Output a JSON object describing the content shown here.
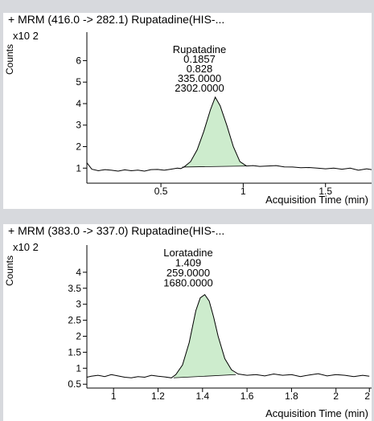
{
  "chart_data": [
    {
      "type": "line",
      "title": "+ MRM (416.0 -> 282.1) Rupatadine(HIS-...",
      "ylabel": "Counts",
      "y_multiplier": "x10 2",
      "xlabel": "Acquisition Time (min)",
      "xlim": [
        0.05,
        1.78
      ],
      "ylim": [
        0.3,
        7.1
      ],
      "x_ticks": [
        0.5,
        1,
        1.5
      ],
      "x_tick_labels": [
        "0.5",
        "1",
        "1.5"
      ],
      "y_ticks": [
        1,
        2,
        3,
        4,
        5,
        6
      ],
      "y_tick_labels": [
        "1",
        "2",
        "3",
        "4",
        "5",
        "6"
      ],
      "peak": {
        "annotation": [
          "Rupatadine",
          "0.1857",
          "0.828",
          "335.0000",
          "2302.0000"
        ],
        "start": [
          0.63,
          1.05
        ],
        "apex": [
          0.83,
          4.3
        ],
        "end": [
          1.02,
          1.1
        ],
        "fill_color": "#cdeccd"
      },
      "series": [
        {
          "line_color": "#000000",
          "x": [
            0.05,
            0.08,
            0.12,
            0.16,
            0.2,
            0.24,
            0.28,
            0.32,
            0.36,
            0.4,
            0.44,
            0.48,
            0.52,
            0.56,
            0.6,
            0.62,
            0.64,
            0.68,
            0.72,
            0.76,
            0.8,
            0.83,
            0.86,
            0.9,
            0.94,
            0.98,
            1.02,
            1.06,
            1.1,
            1.15,
            1.2,
            1.25,
            1.3,
            1.35,
            1.4,
            1.45,
            1.5,
            1.55,
            1.6,
            1.65,
            1.7,
            1.75,
            1.78
          ],
          "y": [
            1.25,
            0.95,
            0.88,
            0.93,
            0.9,
            0.86,
            0.92,
            0.88,
            0.91,
            0.86,
            0.93,
            0.94,
            0.9,
            0.95,
            1.0,
            0.98,
            1.05,
            1.3,
            1.85,
            2.7,
            3.7,
            4.3,
            3.9,
            3.0,
            2.0,
            1.3,
            1.1,
            1.12,
            1.08,
            1.1,
            1.12,
            1.06,
            1.05,
            1.02,
            1.03,
            1.0,
            0.97,
            1.0,
            0.95,
            1.0,
            0.9,
            0.97,
            0.93
          ]
        }
      ]
    },
    {
      "type": "line",
      "title": "+ MRM (383.0 -> 337.0) Rupatadine(HIS-...",
      "ylabel": "Counts",
      "y_multiplier": "x10 2",
      "xlabel": "Acquisition Time (min)",
      "xlim": [
        0.88,
        2.16
      ],
      "ylim": [
        0.38,
        4.7
      ],
      "x_ticks": [
        1,
        1.2,
        1.4,
        1.6,
        1.8,
        2,
        2.15
      ],
      "x_tick_labels": [
        "1",
        "1.2",
        "1.4",
        "1.6",
        "1.8",
        "2",
        "2"
      ],
      "y_ticks": [
        0.5,
        1,
        1.5,
        2,
        2.5,
        3,
        3.5,
        4
      ],
      "y_tick_labels": [
        "0.5",
        "1",
        "1.5",
        "2",
        "2.5",
        "3",
        "3.5",
        "4"
      ],
      "peak": {
        "annotation": [
          "Loratadine",
          "1.409",
          "259.0000",
          "1680.0000"
        ],
        "start": [
          1.27,
          0.7
        ],
        "apex": [
          1.41,
          3.3
        ],
        "end": [
          1.55,
          0.8
        ],
        "fill_color": "#cdeccd"
      },
      "series": [
        {
          "line_color": "#000000",
          "x": [
            0.88,
            0.9,
            0.93,
            0.96,
            0.99,
            1.02,
            1.05,
            1.08,
            1.11,
            1.14,
            1.17,
            1.2,
            1.23,
            1.26,
            1.28,
            1.31,
            1.34,
            1.37,
            1.39,
            1.41,
            1.43,
            1.45,
            1.47,
            1.5,
            1.53,
            1.56,
            1.6,
            1.64,
            1.68,
            1.72,
            1.76,
            1.8,
            1.84,
            1.88,
            1.92,
            1.96,
            2.0,
            2.04,
            2.08,
            2.12,
            2.15
          ],
          "y": [
            0.72,
            0.75,
            0.78,
            0.74,
            0.8,
            0.76,
            0.72,
            0.7,
            0.74,
            0.72,
            0.78,
            0.75,
            0.73,
            0.7,
            0.8,
            1.1,
            1.8,
            2.8,
            3.2,
            3.3,
            3.1,
            2.6,
            2.0,
            1.3,
            0.95,
            0.82,
            0.78,
            0.8,
            0.76,
            0.82,
            0.78,
            0.8,
            0.74,
            0.79,
            0.83,
            0.76,
            0.8,
            0.78,
            0.74,
            0.78,
            0.75
          ]
        }
      ]
    }
  ]
}
